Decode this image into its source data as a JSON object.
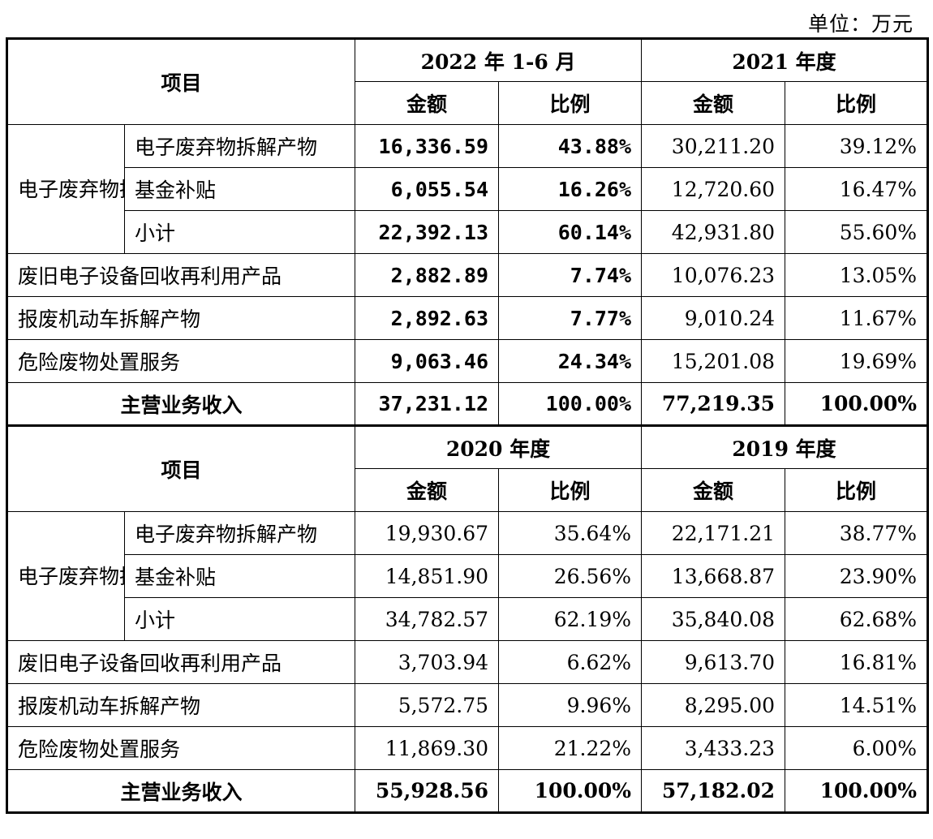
{
  "unit_label": "单位：万元",
  "sections": [
    {
      "header_item": "项目",
      "period_a": "2022 年 1-6 月",
      "period_b": "2021 年度",
      "amount_label": "金额",
      "ratio_label": "比例",
      "group_label": "电子废弃物拆解",
      "rows": [
        {
          "label": "电子废弃物拆解产物",
          "a_amount": "16,336.59",
          "a_ratio": "43.88%",
          "b_amount": "30,211.20",
          "b_ratio": "39.12%"
        },
        {
          "label": "基金补贴",
          "a_amount": "6,055.54",
          "a_ratio": "16.26%",
          "b_amount": "12,720.60",
          "b_ratio": "16.47%"
        },
        {
          "label": "小计",
          "a_amount": "22,392.13",
          "a_ratio": "60.14%",
          "b_amount": "42,931.80",
          "b_ratio": "55.60%"
        },
        {
          "label": "废旧电子设备回收再利用产品",
          "a_amount": "2,882.89",
          "a_ratio": "7.74%",
          "b_amount": "10,076.23",
          "b_ratio": "13.05%"
        },
        {
          "label": "报废机动车拆解产物",
          "a_amount": "2,892.63",
          "a_ratio": "7.77%",
          "b_amount": "9,010.24",
          "b_ratio": "11.67%"
        },
        {
          "label": "危险废物处置服务",
          "a_amount": "9,063.46",
          "a_ratio": "24.34%",
          "b_amount": "15,201.08",
          "b_ratio": "19.69%"
        }
      ],
      "total": {
        "label": "主营业务收入",
        "a_amount": "37,231.12",
        "a_ratio": "100.00%",
        "b_amount": "77,219.35",
        "b_ratio": "100.00%"
      }
    },
    {
      "header_item": "项目",
      "period_a": "2020 年度",
      "period_b": "2019 年度",
      "amount_label": "金额",
      "ratio_label": "比例",
      "group_label": "电子废弃物拆解",
      "rows": [
        {
          "label": "电子废弃物拆解产物",
          "a_amount": "19,930.67",
          "a_ratio": "35.64%",
          "b_amount": "22,171.21",
          "b_ratio": "38.77%"
        },
        {
          "label": "基金补贴",
          "a_amount": "14,851.90",
          "a_ratio": "26.56%",
          "b_amount": "13,668.87",
          "b_ratio": "23.90%"
        },
        {
          "label": "小计",
          "a_amount": "34,782.57",
          "a_ratio": "62.19%",
          "b_amount": "35,840.08",
          "b_ratio": "62.68%"
        },
        {
          "label": "废旧电子设备回收再利用产品",
          "a_amount": "3,703.94",
          "a_ratio": "6.62%",
          "b_amount": "9,613.70",
          "b_ratio": "16.81%"
        },
        {
          "label": "报废机动车拆解产物",
          "a_amount": "5,572.75",
          "a_ratio": "9.96%",
          "b_amount": "8,295.00",
          "b_ratio": "14.51%"
        },
        {
          "label": "危险废物处置服务",
          "a_amount": "11,869.30",
          "a_ratio": "21.22%",
          "b_amount": "3,433.23",
          "b_ratio": "6.00%"
        }
      ],
      "total": {
        "label": "主营业务收入",
        "a_amount": "55,928.56",
        "a_ratio": "100.00%",
        "b_amount": "57,182.02",
        "b_ratio": "100.00%"
      }
    }
  ]
}
